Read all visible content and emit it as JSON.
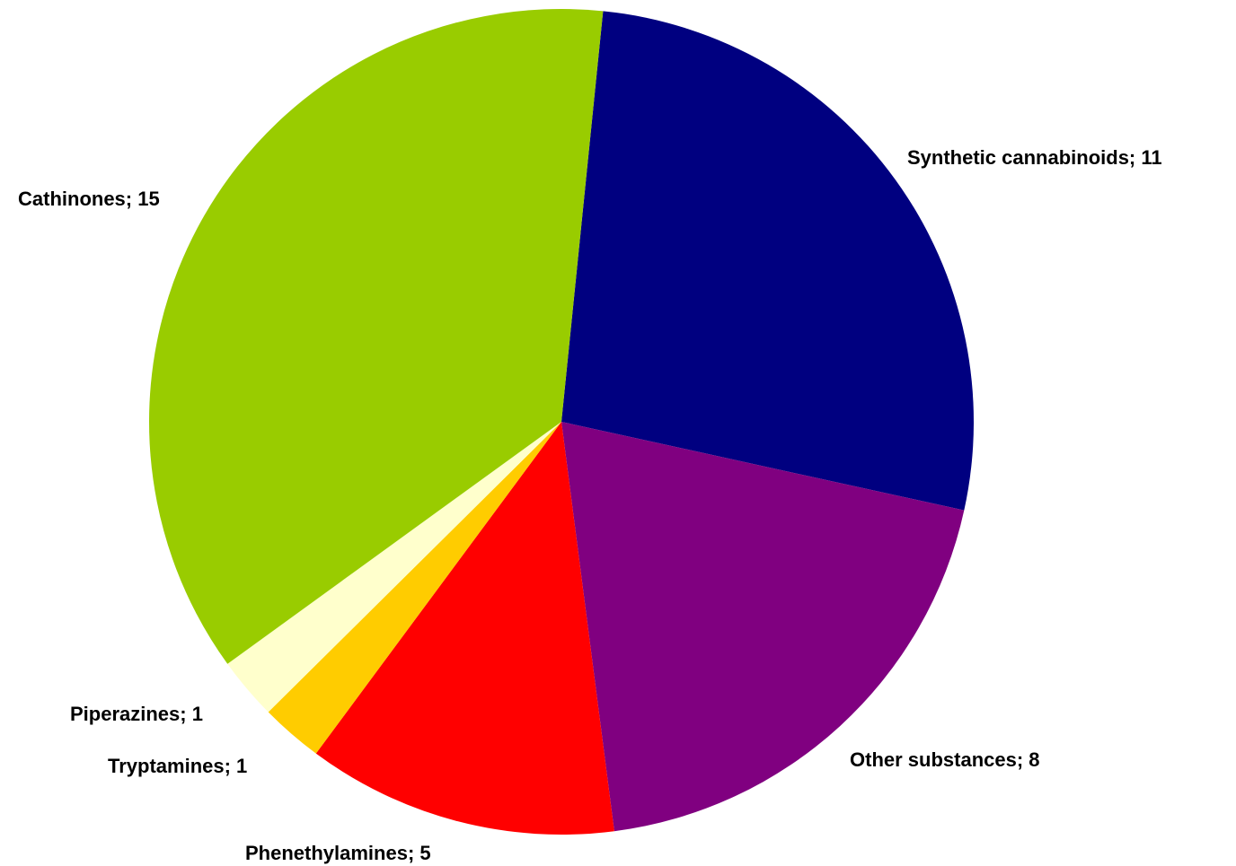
{
  "chart_data": {
    "type": "pie",
    "title": "",
    "legend": "none",
    "slices": [
      {
        "label": "Synthetic cannabinoids; 11",
        "name": "Synthetic cannabinoids",
        "value": 11,
        "color": "#000080"
      },
      {
        "label": "Other substances; 8",
        "name": "Other substances",
        "value": 8,
        "color": "#800080"
      },
      {
        "label": "Phenethylamines; 5",
        "name": "Phenethylamines",
        "value": 5,
        "color": "#ff0000"
      },
      {
        "label": "Tryptamines; 1",
        "name": "Tryptamines",
        "value": 1,
        "color": "#ffcc00"
      },
      {
        "label": "Piperazines; 1",
        "name": "Piperazines",
        "value": 1,
        "color": "#ffffcc"
      },
      {
        "label": "Cathinones; 15",
        "name": "Cathinones",
        "value": 15,
        "color": "#99cc00"
      }
    ]
  }
}
